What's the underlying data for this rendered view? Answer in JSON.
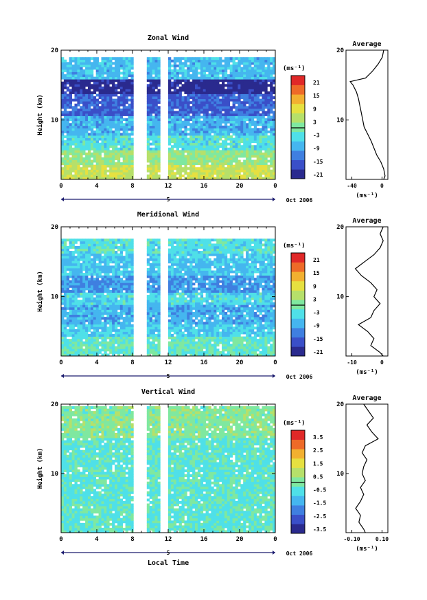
{
  "figure": {
    "date_label": "Oct 2006",
    "x_axis_label": "Local Time",
    "day_label": "5",
    "y_axis_label": "Height (km)",
    "avg_title": "Average",
    "units_label": "(ms⁻¹)"
  },
  "chart_data": [
    {
      "type": "heatmap",
      "title": "Zonal Wind",
      "x_ticks": [
        "0",
        "4",
        "8",
        "12",
        "16",
        "20",
        "0"
      ],
      "xlim": [
        0,
        24
      ],
      "y_ticks": [
        "20",
        "10"
      ],
      "ylim": [
        1.5,
        20
      ],
      "colorbar_ticks": [
        "21",
        "15",
        "9",
        "3",
        "-3",
        "-9",
        "-15",
        "-21"
      ],
      "colorbar_range": [
        -24,
        24
      ],
      "data_gaps_hours": [
        [
          8.1,
          9.4
        ],
        [
          11.4,
          11.8
        ]
      ],
      "layers": [
        {
          "z_min": 1.5,
          "z_max": 3.5,
          "value": 6
        },
        {
          "z_min": 3.5,
          "z_max": 5.5,
          "value": 2
        },
        {
          "z_min": 5.5,
          "z_max": 7.5,
          "value": -4
        },
        {
          "z_min": 7.5,
          "z_max": 10.5,
          "value": -9
        },
        {
          "z_min": 10.5,
          "z_max": 13.5,
          "value": -16
        },
        {
          "z_min": 13.5,
          "z_max": 15.5,
          "value": -22
        },
        {
          "z_min": 15.5,
          "z_max": 19,
          "value": -8
        }
      ],
      "average_profile": {
        "xlabel": "(ms⁻¹)",
        "x_ticks": [
          "-40",
          "0"
        ],
        "xlim": [
          -48,
          12
        ],
        "y_ticks": [
          "20",
          "10"
        ],
        "ylim": [
          1.5,
          20
        ],
        "z": [
          1.5,
          2,
          3,
          4,
          5,
          6,
          7,
          8,
          9,
          10,
          11,
          12,
          13,
          14,
          15,
          15.5,
          16,
          17,
          18,
          19,
          20
        ],
        "u": [
          6,
          8,
          6,
          2,
          -4,
          -8,
          -12,
          -17,
          -22,
          -24,
          -26,
          -28,
          -30,
          -33,
          -38,
          -42,
          -20,
          -10,
          -2,
          4,
          6
        ]
      }
    },
    {
      "type": "heatmap",
      "title": "Meridional Wind",
      "x_ticks": [
        "0",
        "4",
        "8",
        "12",
        "16",
        "20",
        "0"
      ],
      "xlim": [
        0,
        24
      ],
      "y_ticks": [
        "20",
        "10"
      ],
      "ylim": [
        1.5,
        20
      ],
      "colorbar_ticks": [
        "21",
        "15",
        "9",
        "3",
        "-3",
        "-9",
        "-15",
        "-21"
      ],
      "colorbar_range": [
        -24,
        24
      ],
      "data_gaps_hours": [
        [
          8.1,
          9.4
        ],
        [
          11.4,
          11.8
        ]
      ],
      "layers": [
        {
          "z_min": 1.5,
          "z_max": 4,
          "value": -2
        },
        {
          "z_min": 4,
          "z_max": 6,
          "value": -6
        },
        {
          "z_min": 6,
          "z_max": 8.5,
          "value": -9
        },
        {
          "z_min": 8.5,
          "z_max": 10.5,
          "value": -5
        },
        {
          "z_min": 10.5,
          "z_max": 13,
          "value": -11
        },
        {
          "z_min": 13,
          "z_max": 16,
          "value": -7
        },
        {
          "z_min": 16,
          "z_max": 18,
          "value": -4
        }
      ],
      "average_profile": {
        "xlabel": "(ms⁻¹)",
        "x_ticks": [
          "-10",
          "0"
        ],
        "xlim": [
          -13,
          0.5
        ],
        "y_ticks": [
          "20",
          "10"
        ],
        "ylim": [
          1.5,
          20
        ],
        "z": [
          1.5,
          2,
          3,
          4,
          5,
          6,
          7,
          8,
          9,
          10,
          11,
          12,
          13,
          14,
          15,
          16,
          17,
          18,
          19,
          20
        ],
        "u": [
          -1,
          -2,
          -5,
          -4,
          -6,
          -9,
          -5,
          -4,
          -2,
          -4,
          -3,
          -5,
          -8,
          -10,
          -7,
          -4,
          -2,
          -1,
          -2,
          -1
        ]
      }
    },
    {
      "type": "heatmap",
      "title": "Vertical Wind",
      "x_ticks": [
        "0",
        "4",
        "8",
        "12",
        "16",
        "20",
        "0"
      ],
      "xlim": [
        0,
        24
      ],
      "y_ticks": [
        "20",
        "10"
      ],
      "ylim": [
        1.5,
        20
      ],
      "colorbar_ticks": [
        "3.5",
        "2.5",
        "1.5",
        "0.5",
        "-0.5",
        "-1.5",
        "-2.5",
        "-3.5"
      ],
      "colorbar_range": [
        -4,
        4
      ],
      "data_gaps_hours": [
        [
          8.1,
          9.4
        ],
        [
          11.4,
          11.8
        ]
      ],
      "layers": [
        {
          "z_min": 1.5,
          "z_max": 15,
          "value": -0.5
        },
        {
          "z_min": 15,
          "z_max": 19.5,
          "value": 0.1
        }
      ],
      "average_profile": {
        "xlabel": "(ms⁻¹)",
        "x_ticks": [
          "-0.10",
          "0.10"
        ],
        "xlim": [
          -0.14,
          0.12
        ],
        "y_ticks": [
          "20",
          "10"
        ],
        "ylim": [
          1.5,
          20
        ],
        "z": [
          1.5,
          2,
          3,
          4,
          5,
          6,
          7,
          8,
          9,
          10,
          11,
          12,
          13,
          14,
          15,
          16,
          17,
          18,
          19,
          20
        ],
        "u": [
          -0.02,
          -0.03,
          -0.06,
          -0.05,
          -0.08,
          -0.05,
          -0.03,
          -0.05,
          -0.02,
          -0.04,
          -0.03,
          -0.01,
          -0.04,
          -0.02,
          0.06,
          0.02,
          -0.01,
          0.03,
          0.0,
          -0.03
        ]
      }
    }
  ]
}
